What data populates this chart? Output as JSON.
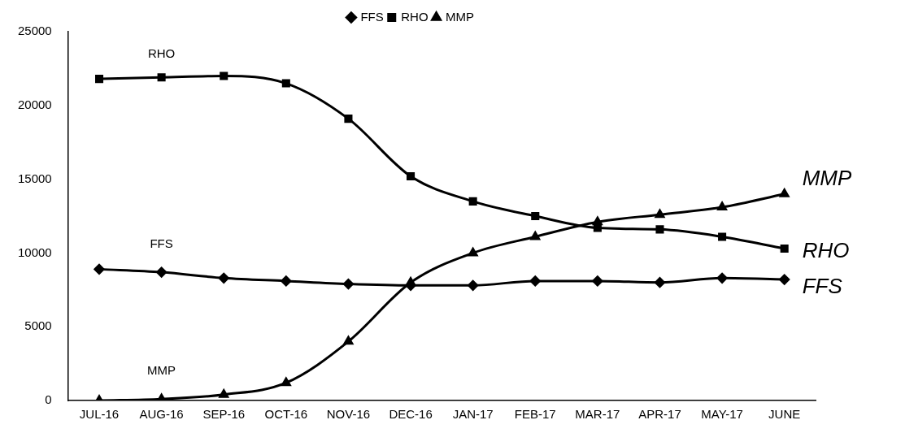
{
  "chart_data": {
    "type": "line",
    "categories": [
      "JUL-16",
      "AUG-16",
      "SEP-16",
      "OCT-16",
      "NOV-16",
      "DEC-16",
      "JAN-17",
      "FEB-17",
      "MAR-17",
      "APR-17",
      "MAY-17",
      "JUNE"
    ],
    "series": [
      {
        "name": "FFS",
        "color": "#000000",
        "marker": "diamond",
        "values": [
          8900,
          8700,
          8300,
          8100,
          7900,
          7800,
          7800,
          8100,
          8100,
          8000,
          8300,
          8200
        ]
      },
      {
        "name": "RHO",
        "color": "#000000",
        "marker": "square",
        "values": [
          21800,
          21900,
          22000,
          21500,
          19100,
          15200,
          13500,
          12500,
          11700,
          11600,
          11100,
          10300
        ]
      },
      {
        "name": "MMP",
        "color": "#000000",
        "marker": "triangle",
        "values": [
          0,
          100,
          400,
          1200,
          4000,
          8000,
          10000,
          11100,
          12100,
          12600,
          13100,
          14000
        ]
      }
    ],
    "ylim": [
      0,
      25000
    ],
    "yticks": [
      0,
      5000,
      10000,
      15000,
      20000,
      25000
    ],
    "grid": false,
    "legend": "top",
    "line_style": "solid",
    "annotations": [
      "RHO",
      "FFS",
      "MMP",
      "MMP",
      "RHO",
      "FFS"
    ]
  }
}
